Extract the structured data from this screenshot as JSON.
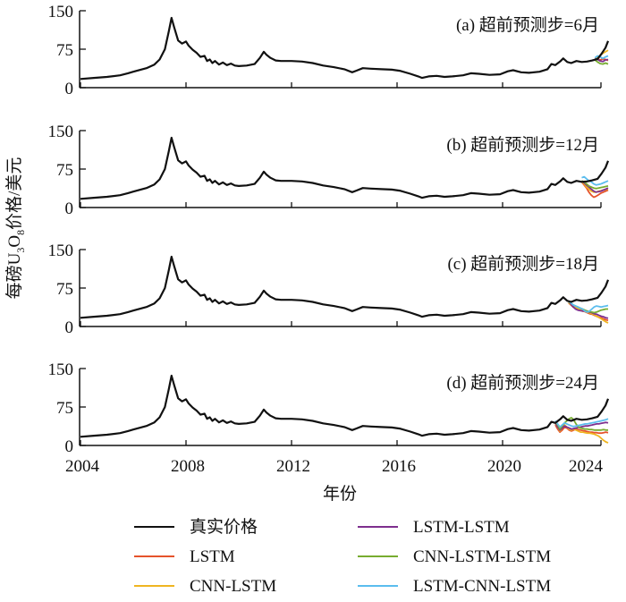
{
  "chart_data": {
    "type": "line",
    "ylabel_parts": [
      "每磅U",
      "3",
      "O",
      "8",
      "价格/美元"
    ],
    "ylabel": "每磅U3O8价格/美元",
    "xlabel": "年份",
    "xlim": [
      2004,
      2024
    ],
    "ylim": [
      0,
      150
    ],
    "x_ticks": [
      "2004",
      "2008",
      "2012",
      "2016",
      "2020",
      "2024"
    ],
    "x_tick_values": [
      2004,
      2008,
      2012,
      2016,
      2020,
      2024
    ],
    "y_ticks": [
      "0",
      "75",
      "150"
    ],
    "y_tick_values": [
      0,
      75,
      150
    ],
    "grid": false,
    "colors": {
      "真实价格": "#111111",
      "LSTM": "#e5532b",
      "CNN-LSTM": "#efb521",
      "LSTM-LSTM": "#7e2f8e",
      "CNN-LSTM-LSTM": "#77ac30",
      "LSTM-CNN-LSTM": "#5bbdee"
    },
    "legend": {
      "placement": "bottom",
      "entries": [
        "真实价格",
        "LSTM",
        "CNN-LSTM",
        "LSTM-LSTM",
        "CNN-LSTM-LSTM",
        "LSTM-CNN-LSTM"
      ]
    },
    "actual": {
      "name": "真实价格",
      "x": [
        2004.0,
        2004.5,
        2005.0,
        2005.5,
        2005.8,
        2006.0,
        2006.5,
        2006.8,
        2007.0,
        2007.2,
        2007.35,
        2007.45,
        2007.55,
        2007.7,
        2007.85,
        2008.0,
        2008.1,
        2008.25,
        2008.4,
        2008.55,
        2008.7,
        2008.8,
        2008.9,
        2009.0,
        2009.1,
        2009.25,
        2009.4,
        2009.55,
        2009.7,
        2009.85,
        2010.0,
        2010.3,
        2010.6,
        2010.8,
        2010.95,
        2011.05,
        2011.2,
        2011.4,
        2011.6,
        2012.0,
        2012.4,
        2012.8,
        2013.2,
        2013.6,
        2014.0,
        2014.3,
        2014.45,
        2014.7,
        2015.0,
        2015.4,
        2015.8,
        2016.1,
        2016.5,
        2016.8,
        2016.95,
        2017.2,
        2017.5,
        2017.8,
        2018.1,
        2018.5,
        2018.8,
        2019.1,
        2019.5,
        2019.9,
        2020.2,
        2020.4,
        2020.7,
        2021.0,
        2021.4,
        2021.7,
        2021.85,
        2022.0,
        2022.2,
        2022.3,
        2022.45,
        2022.6,
        2022.8,
        2023.0,
        2023.2,
        2023.4,
        2023.6,
        2023.75,
        2023.9,
        2024.0
      ],
      "y": [
        17,
        19,
        21,
        24,
        28,
        31,
        38,
        45,
        55,
        75,
        110,
        136,
        118,
        92,
        86,
        90,
        82,
        74,
        68,
        60,
        62,
        52,
        55,
        48,
        52,
        45,
        49,
        44,
        47,
        43,
        42,
        43,
        46,
        58,
        70,
        64,
        58,
        53,
        52,
        52,
        51,
        48,
        43,
        40,
        36,
        30,
        33,
        38,
        37,
        36,
        35,
        33,
        27,
        22,
        19,
        22,
        23,
        21,
        22,
        24,
        28,
        27,
        25,
        26,
        32,
        34,
        30,
        29,
        31,
        36,
        46,
        44,
        52,
        57,
        50,
        48,
        52,
        50,
        51,
        53,
        56,
        66,
        78,
        91
      ]
    },
    "panels": [
      {
        "label": "(a) 超前预测步=6月",
        "x_start": 2023.5,
        "x_end": 2024.0,
        "predictions": [
          {
            "name": "LSTM",
            "values": [
              58,
              56,
              54,
              56,
              55,
              53
            ]
          },
          {
            "name": "CNN-LSTM",
            "values": [
              56,
              59,
              63,
              67,
              70,
              73
            ]
          },
          {
            "name": "LSTM-LSTM",
            "values": [
              57,
              55,
              52,
              51,
              54,
              55
            ]
          },
          {
            "name": "CNN-LSTM-LSTM",
            "values": [
              54,
              50,
              47,
              46,
              48,
              46
            ]
          },
          {
            "name": "LSTM-CNN-LSTM",
            "values": [
              58,
              62,
              60,
              57,
              60,
              62
            ]
          }
        ]
      },
      {
        "label": "(b) 超前预测步=12月",
        "x_start": 2023.0,
        "x_end": 2024.0,
        "predictions": [
          {
            "name": "LSTM",
            "values": [
              50,
              44,
              38,
              30,
              24,
              20,
              22,
              25,
              28,
              30,
              32,
              34
            ]
          },
          {
            "name": "CNN-LSTM",
            "values": [
              50,
              46,
              40,
              36,
              32,
              30,
              30,
              32,
              33,
              34,
              35,
              36
            ]
          },
          {
            "name": "LSTM-LSTM",
            "values": [
              52,
              48,
              44,
              40,
              36,
              32,
              30,
              31,
              32,
              34,
              36,
              38
            ]
          },
          {
            "name": "CNN-LSTM-LSTM",
            "values": [
              52,
              50,
              46,
              42,
              40,
              38,
              37,
              38,
              39,
              40,
              41,
              42
            ]
          },
          {
            "name": "LSTM-CNN-LSTM",
            "values": [
              58,
              60,
              56,
              52,
              50,
              46,
              44,
              45,
              46,
              48,
              50,
              52
            ]
          }
        ]
      },
      {
        "label": "(c) 超前预测步=18月",
        "x_start": 2022.5,
        "x_end": 2024.0,
        "predictions": [
          {
            "name": "LSTM",
            "values": [
              46,
              42,
              38,
              36,
              33,
              32,
              30,
              29,
              27,
              25,
              24,
              22,
              20,
              18,
              17,
              15,
              13,
              12
            ]
          },
          {
            "name": "CNN-LSTM",
            "values": [
              46,
              43,
              40,
              37,
              35,
              33,
              31,
              30,
              28,
              27,
              25,
              23,
              20,
              18,
              15,
              12,
              9,
              7
            ]
          },
          {
            "name": "LSTM-LSTM",
            "values": [
              48,
              44,
              38,
              34,
              32,
              31,
              30,
              31,
              30,
              28,
              27,
              25,
              24,
              22,
              20,
              19,
              17,
              16
            ]
          },
          {
            "name": "CNN-LSTM-LSTM",
            "values": [
              48,
              46,
              42,
              40,
              38,
              36,
              34,
              32,
              30,
              29,
              28,
              27,
              28,
              30,
              32,
              33,
              34,
              34
            ]
          },
          {
            "name": "LSTM-CNN-LSTM",
            "values": [
              50,
              46,
              42,
              40,
              38,
              36,
              34,
              30,
              28,
              30,
              34,
              38,
              40,
              39,
              38,
              39,
              40,
              41
            ]
          }
        ]
      },
      {
        "label": "(d) 超前预测步=24月",
        "x_start": 2022.0,
        "x_end": 2024.0,
        "predictions": [
          {
            "name": "LSTM",
            "values": [
              40,
              32,
              26,
              30,
              36,
              34,
              30,
              28,
              30,
              32,
              31,
              30,
              29,
              28,
              27,
              26,
              26,
              25,
              25,
              24,
              24,
              25,
              26,
              25
            ]
          },
          {
            "name": "CNN-LSTM",
            "values": [
              42,
              36,
              28,
              34,
              40,
              36,
              32,
              30,
              32,
              30,
              28,
              26,
              26,
              25,
              24,
              24,
              23,
              22,
              20,
              18,
              14,
              10,
              7,
              5
            ]
          },
          {
            "name": "LSTM-LSTM",
            "values": [
              44,
              36,
              30,
              34,
              38,
              36,
              34,
              32,
              33,
              34,
              35,
              36,
              37,
              38,
              38,
              39,
              40,
              41,
              42,
              42,
              43,
              44,
              45,
              44
            ]
          },
          {
            "name": "CNN-LSTM-LSTM",
            "values": [
              46,
              40,
              32,
              38,
              44,
              48,
              52,
              54,
              50,
              42,
              36,
              34,
              33,
              32,
              32,
              31,
              31,
              30,
              30,
              30,
              30,
              31,
              30,
              30
            ]
          },
          {
            "name": "LSTM-CNN-LSTM",
            "values": [
              48,
              42,
              36,
              40,
              44,
              42,
              40,
              38,
              37,
              38,
              39,
              40,
              41,
              42,
              42,
              43,
              44,
              45,
              46,
              47,
              48,
              49,
              50,
              52
            ]
          }
        ]
      }
    ]
  }
}
